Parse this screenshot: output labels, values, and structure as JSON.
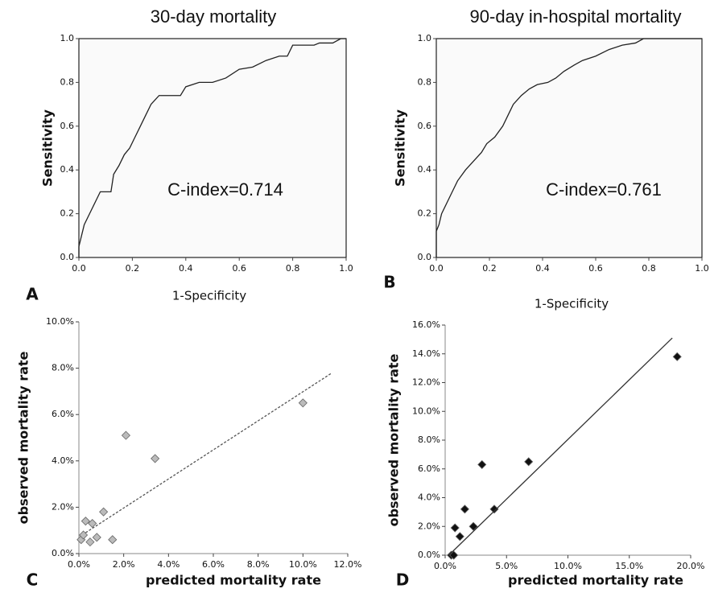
{
  "chart_data": [
    {
      "type": "line",
      "panel_label": "A",
      "title": "30-day mortality",
      "x_label": "1-Specificity",
      "y_label": "Sensitivity",
      "annotation": "C-index=0.714",
      "frame": true,
      "xlim": [
        0,
        1
      ],
      "ylim": [
        0,
        1
      ],
      "xticks": [
        {
          "value": 0,
          "label": "0.0"
        },
        0.2,
        0.4,
        0.6,
        0.8,
        {
          "value": 1,
          "label": "1.0"
        }
      ],
      "yticks": [
        {
          "value": 0,
          "label": "0.0"
        },
        0.2,
        0.4,
        0.6,
        0.8,
        {
          "value": 1,
          "label": "1.0"
        }
      ],
      "series": [
        {
          "mode": "line",
          "color": "#222222",
          "x": [
            0,
            0,
            0.01,
            0.02,
            0.04,
            0.06,
            0.08,
            0.12,
            0.13,
            0.15,
            0.17,
            0.19,
            0.21,
            0.23,
            0.25,
            0.27,
            0.3,
            0.38,
            0.4,
            0.45,
            0.5,
            0.55,
            0.6,
            0.65,
            0.7,
            0.75,
            0.78,
            0.8,
            0.88,
            0.9,
            0.95,
            0.98,
            1
          ],
          "values": [
            0,
            0.05,
            0.1,
            0.15,
            0.2,
            0.25,
            0.3,
            0.3,
            0.38,
            0.42,
            0.47,
            0.5,
            0.55,
            0.6,
            0.65,
            0.7,
            0.74,
            0.74,
            0.78,
            0.8,
            0.8,
            0.82,
            0.86,
            0.87,
            0.9,
            0.92,
            0.92,
            0.97,
            0.97,
            0.98,
            0.98,
            1,
            1
          ]
        }
      ]
    },
    {
      "type": "line",
      "panel_label": "B",
      "title": "90-day in-hospital mortality",
      "x_label": "1-Specificity",
      "y_label": "Sensitivity",
      "annotation": "C-index=0.761",
      "frame": true,
      "xlim": [
        0,
        1
      ],
      "ylim": [
        0,
        1
      ],
      "xticks": [
        {
          "value": 0,
          "label": "0.0"
        },
        0.2,
        0.4,
        0.6,
        0.8,
        {
          "value": 1,
          "label": "1.0"
        }
      ],
      "yticks": [
        {
          "value": 0,
          "label": "0.0"
        },
        0.2,
        0.4,
        0.6,
        0.8,
        {
          "value": 1,
          "label": "1.0"
        }
      ],
      "series": [
        {
          "mode": "line",
          "color": "#222222",
          "x": [
            0,
            0,
            0.01,
            0.02,
            0.04,
            0.06,
            0.08,
            0.11,
            0.14,
            0.17,
            0.19,
            0.22,
            0.25,
            0.27,
            0.29,
            0.32,
            0.35,
            0.38,
            0.42,
            0.45,
            0.48,
            0.52,
            0.55,
            0.6,
            0.65,
            0.7,
            0.75,
            0.78,
            1
          ],
          "values": [
            0,
            0.12,
            0.15,
            0.2,
            0.25,
            0.3,
            0.35,
            0.4,
            0.44,
            0.48,
            0.52,
            0.55,
            0.6,
            0.65,
            0.7,
            0.74,
            0.77,
            0.79,
            0.8,
            0.82,
            0.85,
            0.88,
            0.9,
            0.92,
            0.95,
            0.97,
            0.98,
            1,
            1
          ]
        }
      ]
    },
    {
      "type": "scatter",
      "panel_label": "C",
      "x_label": "predicted mortality rate",
      "y_label": "observed mortality rate",
      "frame": false,
      "xlim": [
        0,
        12
      ],
      "ylim": [
        0,
        10
      ],
      "xticks": [
        {
          "value": 0,
          "label": "0.0%"
        },
        {
          "value": 2,
          "label": "2.0%"
        },
        {
          "value": 4,
          "label": "4.0%"
        },
        {
          "value": 6,
          "label": "6.0%"
        },
        {
          "value": 8,
          "label": "8.0%"
        },
        {
          "value": 10,
          "label": "10.0%"
        },
        {
          "value": 12,
          "label": "12.0%"
        }
      ],
      "yticks": [
        {
          "value": 0,
          "label": "0.0%"
        },
        {
          "value": 2,
          "label": "2.0%"
        },
        {
          "value": 4,
          "label": "4.0%"
        },
        {
          "value": 6,
          "label": "6.0%"
        },
        {
          "value": 8,
          "label": "8.0%"
        },
        {
          "value": 10,
          "label": "10.0%"
        }
      ],
      "series": [
        {
          "mode": "markers",
          "color": "#bbbbbb",
          "x": [
            0.1,
            0.2,
            0.3,
            0.5,
            0.6,
            0.8,
            1.1,
            1.5,
            2.1,
            3.4,
            10.0
          ],
          "values": [
            0.6,
            0.8,
            1.4,
            0.5,
            1.3,
            0.7,
            1.8,
            0.6,
            5.1,
            4.1,
            6.5
          ]
        },
        {
          "mode": "line",
          "dashed": true,
          "color": "#555555",
          "x": [
            0.3,
            11.3
          ],
          "values": [
            0.9,
            7.8
          ]
        }
      ]
    },
    {
      "type": "scatter",
      "panel_label": "D",
      "x_label": "predicted mortality rate",
      "y_label": "observed mortality rate",
      "frame": false,
      "xlim": [
        0,
        20
      ],
      "ylim": [
        0,
        16
      ],
      "xticks": [
        {
          "value": 0,
          "label": "0.0%"
        },
        {
          "value": 5,
          "label": "5.0%"
        },
        {
          "value": 10,
          "label": "10.0%"
        },
        {
          "value": 15,
          "label": "15.0%"
        },
        {
          "value": 20,
          "label": "20.0%"
        }
      ],
      "yticks": [
        {
          "value": 0,
          "label": "0.0%"
        },
        {
          "value": 2,
          "label": "2.0%"
        },
        {
          "value": 4,
          "label": "4.0%"
        },
        {
          "value": 6,
          "label": "6.0%"
        },
        {
          "value": 8,
          "label": "8.0%"
        },
        {
          "value": 10,
          "label": "10.0%"
        },
        {
          "value": 12,
          "label": "12.0%"
        },
        {
          "value": 14,
          "label": "14.0%"
        },
        {
          "value": 16,
          "label": "16.0%"
        }
      ],
      "series": [
        {
          "mode": "markers",
          "color": "#111111",
          "x": [
            0.5,
            0.7,
            0.8,
            1.2,
            1.6,
            2.3,
            3.0,
            4.0,
            6.8,
            18.9
          ],
          "values": [
            0,
            0,
            1.9,
            1.3,
            3.2,
            2.0,
            6.3,
            3.2,
            6.5,
            13.8
          ]
        },
        {
          "mode": "line",
          "dashed": false,
          "color": "#333333",
          "x": [
            0.3,
            18.5
          ],
          "values": [
            0,
            15.1
          ]
        }
      ]
    }
  ]
}
